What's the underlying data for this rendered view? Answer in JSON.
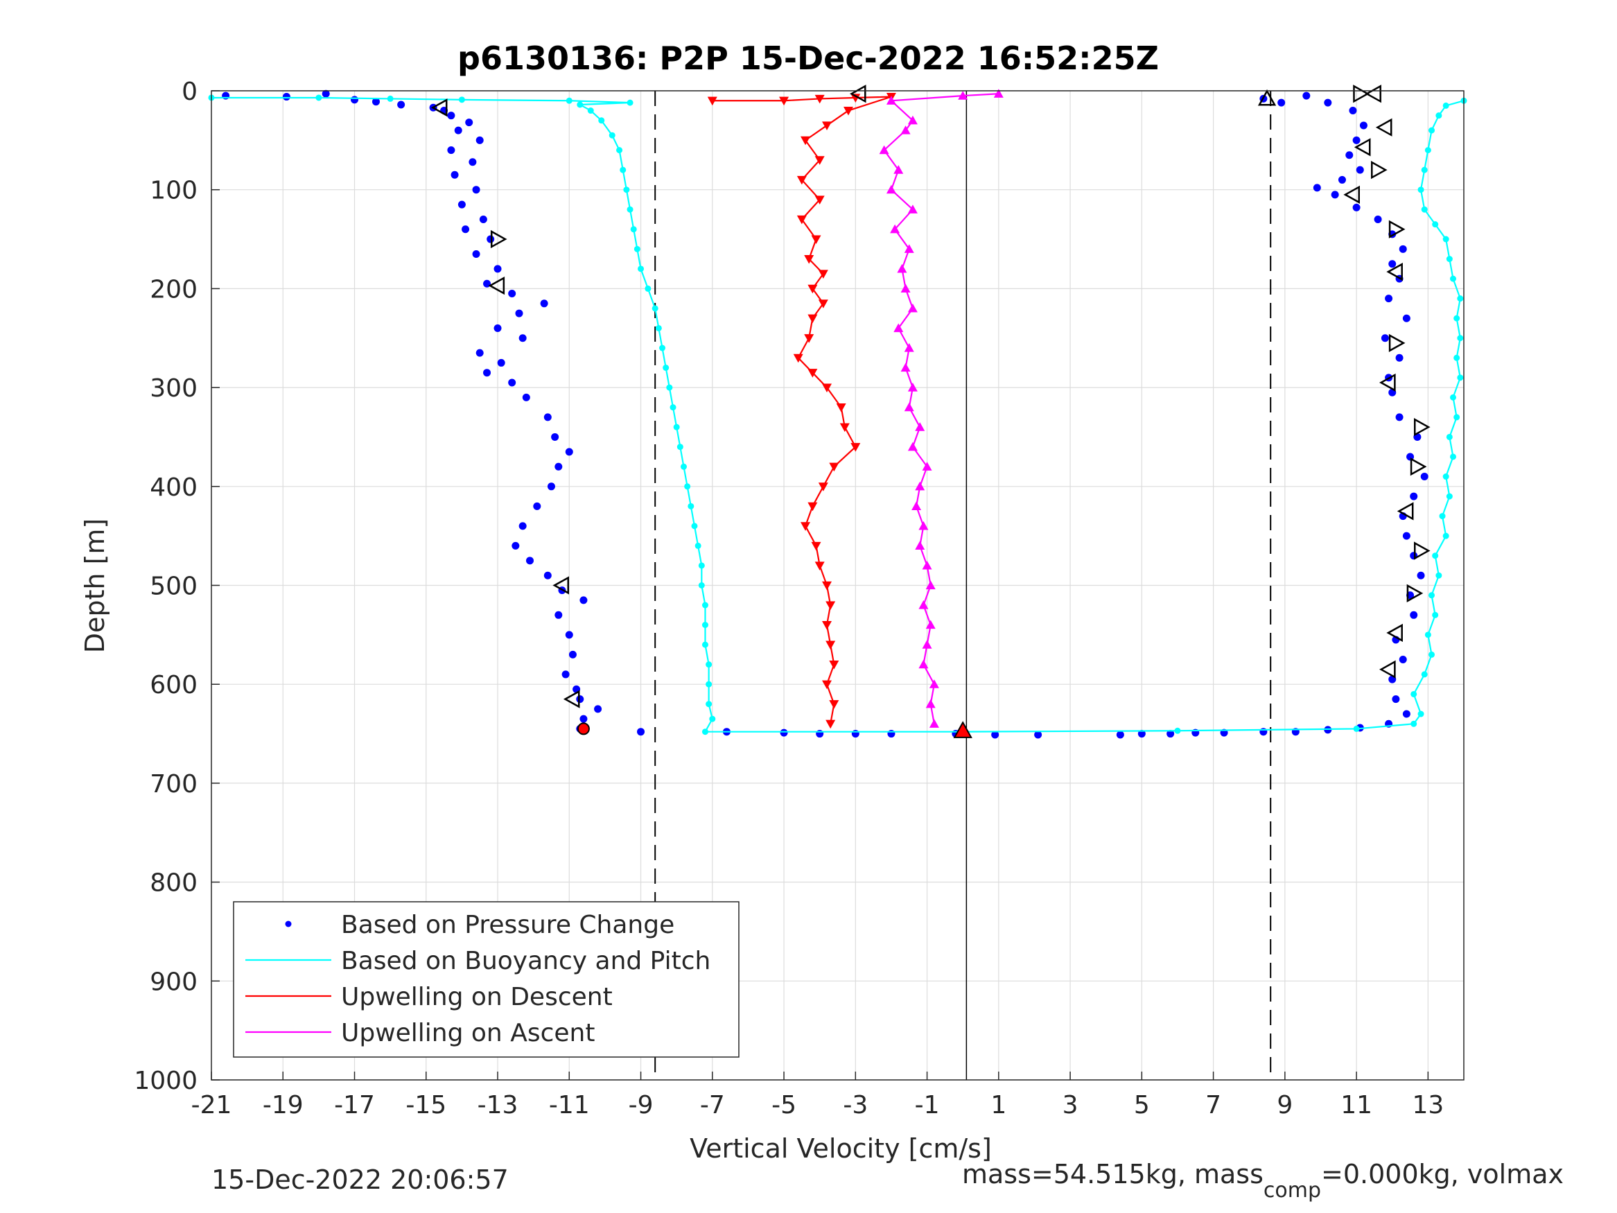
{
  "chart_data": {
    "type": "scatter",
    "title": "p6130136: P2P 15-Dec-2022 16:52:25Z",
    "xlabel": "Vertical Velocity [cm/s]",
    "ylabel": "Depth [m]",
    "xlim": [
      -21,
      14
    ],
    "ylim": [
      0,
      1000
    ],
    "y_reversed": true,
    "grid": true,
    "xticks": [
      -21,
      -19,
      -17,
      -15,
      -13,
      -11,
      -9,
      -7,
      -5,
      -3,
      -1,
      1,
      3,
      5,
      7,
      9,
      11,
      13
    ],
    "yticks": [
      0,
      100,
      200,
      300,
      400,
      500,
      600,
      700,
      800,
      900,
      1000
    ],
    "legend_position": "bottom-left",
    "reference_lines": {
      "dashed_x": [
        -8.6,
        8.6
      ],
      "solid_x": [
        0.1
      ]
    },
    "series": [
      {
        "name": "Based on Pressure Change",
        "color": "#0000ff",
        "marker": "dot",
        "points": [
          [
            -20.6,
            5
          ],
          [
            -18.9,
            6
          ],
          [
            -17.8,
            3
          ],
          [
            -17.0,
            9
          ],
          [
            -16.4,
            11
          ],
          [
            -15.7,
            14
          ],
          [
            -14.8,
            17
          ],
          [
            -14.5,
            20
          ],
          [
            -14.3,
            25
          ],
          [
            -13.8,
            32
          ],
          [
            -14.1,
            40
          ],
          [
            -13.5,
            50
          ],
          [
            -14.3,
            60
          ],
          [
            -13.7,
            72
          ],
          [
            -14.2,
            85
          ],
          [
            -13.6,
            100
          ],
          [
            -14.0,
            115
          ],
          [
            -13.4,
            130
          ],
          [
            -13.9,
            140
          ],
          [
            -13.2,
            150
          ],
          [
            -13.6,
            165
          ],
          [
            -13.0,
            180
          ],
          [
            -13.3,
            195
          ],
          [
            -12.6,
            205
          ],
          [
            -11.7,
            215
          ],
          [
            -12.4,
            225
          ],
          [
            -13.0,
            240
          ],
          [
            -12.3,
            250
          ],
          [
            -13.5,
            265
          ],
          [
            -12.9,
            275
          ],
          [
            -13.3,
            285
          ],
          [
            -12.6,
            295
          ],
          [
            -12.2,
            310
          ],
          [
            -11.6,
            330
          ],
          [
            -11.4,
            350
          ],
          [
            -11.0,
            365
          ],
          [
            -11.3,
            380
          ],
          [
            -11.5,
            400
          ],
          [
            -11.9,
            420
          ],
          [
            -12.3,
            440
          ],
          [
            -12.5,
            460
          ],
          [
            -12.1,
            475
          ],
          [
            -11.6,
            490
          ],
          [
            -11.2,
            505
          ],
          [
            -10.6,
            515
          ],
          [
            -11.3,
            530
          ],
          [
            -11.0,
            550
          ],
          [
            -10.9,
            570
          ],
          [
            -11.1,
            590
          ],
          [
            -10.8,
            605
          ],
          [
            -10.7,
            615
          ],
          [
            -10.2,
            625
          ],
          [
            -10.6,
            635
          ],
          [
            -10.7,
            645
          ],
          [
            -9.0,
            648
          ],
          [
            -6.6,
            648
          ],
          [
            -5.0,
            649
          ],
          [
            -4.0,
            650
          ],
          [
            -3.0,
            650
          ],
          [
            -2.0,
            650
          ],
          [
            -0.2,
            650
          ],
          [
            0.9,
            651
          ],
          [
            2.1,
            651
          ],
          [
            4.4,
            651
          ],
          [
            5.0,
            650
          ],
          [
            5.8,
            650
          ],
          [
            6.5,
            649
          ],
          [
            7.3,
            649
          ],
          [
            8.4,
            648
          ],
          [
            9.3,
            648
          ],
          [
            10.2,
            646
          ],
          [
            11.1,
            644
          ],
          [
            11.9,
            640
          ],
          [
            12.4,
            630
          ],
          [
            12.1,
            615
          ],
          [
            12.0,
            595
          ],
          [
            12.3,
            575
          ],
          [
            12.1,
            555
          ],
          [
            12.6,
            530
          ],
          [
            12.5,
            510
          ],
          [
            12.8,
            490
          ],
          [
            12.6,
            470
          ],
          [
            12.4,
            450
          ],
          [
            12.3,
            430
          ],
          [
            12.6,
            410
          ],
          [
            12.9,
            390
          ],
          [
            12.5,
            370
          ],
          [
            12.7,
            350
          ],
          [
            12.2,
            330
          ],
          [
            12.0,
            305
          ],
          [
            11.9,
            290
          ],
          [
            12.2,
            270
          ],
          [
            11.8,
            250
          ],
          [
            12.4,
            230
          ],
          [
            11.9,
            210
          ],
          [
            12.2,
            190
          ],
          [
            12.0,
            175
          ],
          [
            12.3,
            160
          ],
          [
            12.0,
            145
          ],
          [
            11.6,
            130
          ],
          [
            11.0,
            118
          ],
          [
            10.4,
            105
          ],
          [
            9.9,
            98
          ],
          [
            10.6,
            90
          ],
          [
            11.1,
            80
          ],
          [
            10.8,
            65
          ],
          [
            11.0,
            50
          ],
          [
            11.2,
            35
          ],
          [
            10.9,
            20
          ],
          [
            10.2,
            12
          ],
          [
            9.6,
            5
          ],
          [
            8.4,
            8
          ],
          [
            8.9,
            12
          ]
        ]
      },
      {
        "name": "Based on Buoyancy and Pitch",
        "color": "#00ffff",
        "marker": "line+dot",
        "points": [
          [
            -21.0,
            7
          ],
          [
            -18.0,
            7
          ],
          [
            -16.0,
            8
          ],
          [
            -14.0,
            9
          ],
          [
            -11.0,
            10
          ],
          [
            -9.3,
            12
          ],
          [
            -10.7,
            14
          ],
          [
            -10.4,
            20
          ],
          [
            -10.1,
            30
          ],
          [
            -9.8,
            45
          ],
          [
            -9.6,
            60
          ],
          [
            -9.5,
            80
          ],
          [
            -9.4,
            100
          ],
          [
            -9.3,
            120
          ],
          [
            -9.2,
            140
          ],
          [
            -9.1,
            160
          ],
          [
            -9.0,
            180
          ],
          [
            -8.8,
            200
          ],
          [
            -8.6,
            220
          ],
          [
            -8.5,
            240
          ],
          [
            -8.4,
            260
          ],
          [
            -8.3,
            280
          ],
          [
            -8.2,
            300
          ],
          [
            -8.1,
            320
          ],
          [
            -8.0,
            340
          ],
          [
            -7.9,
            360
          ],
          [
            -7.8,
            380
          ],
          [
            -7.7,
            400
          ],
          [
            -7.6,
            420
          ],
          [
            -7.5,
            440
          ],
          [
            -7.4,
            460
          ],
          [
            -7.3,
            480
          ],
          [
            -7.3,
            500
          ],
          [
            -7.2,
            520
          ],
          [
            -7.2,
            540
          ],
          [
            -7.2,
            560
          ],
          [
            -7.1,
            580
          ],
          [
            -7.1,
            600
          ],
          [
            -7.1,
            620
          ],
          [
            -7.0,
            635
          ],
          [
            -7.2,
            648
          ],
          [
            0.0,
            648
          ],
          [
            6.0,
            647
          ],
          [
            11.0,
            645
          ],
          [
            12.6,
            640
          ],
          [
            12.8,
            630
          ],
          [
            12.6,
            610
          ],
          [
            12.9,
            590
          ],
          [
            13.1,
            570
          ],
          [
            13.0,
            550
          ],
          [
            13.2,
            530
          ],
          [
            13.1,
            510
          ],
          [
            13.3,
            490
          ],
          [
            13.2,
            470
          ],
          [
            13.5,
            450
          ],
          [
            13.4,
            430
          ],
          [
            13.6,
            410
          ],
          [
            13.5,
            390
          ],
          [
            13.7,
            370
          ],
          [
            13.6,
            350
          ],
          [
            13.8,
            330
          ],
          [
            13.7,
            310
          ],
          [
            13.9,
            290
          ],
          [
            13.8,
            270
          ],
          [
            13.9,
            250
          ],
          [
            13.8,
            230
          ],
          [
            13.9,
            210
          ],
          [
            13.7,
            190
          ],
          [
            13.6,
            170
          ],
          [
            13.5,
            150
          ],
          [
            13.2,
            135
          ],
          [
            12.9,
            120
          ],
          [
            12.8,
            100
          ],
          [
            12.9,
            80
          ],
          [
            13.0,
            60
          ],
          [
            13.1,
            40
          ],
          [
            13.3,
            25
          ],
          [
            13.5,
            15
          ],
          [
            14.0,
            10
          ]
        ]
      },
      {
        "name": "Upwelling on Descent",
        "color": "#ff0000",
        "marker": "down-triangle",
        "points": [
          [
            -7.0,
            10
          ],
          [
            -5.0,
            10
          ],
          [
            -4.0,
            8
          ],
          [
            -3.0,
            7
          ],
          [
            -2.0,
            6
          ],
          [
            -3.2,
            20
          ],
          [
            -3.8,
            35
          ],
          [
            -4.4,
            50
          ],
          [
            -4.0,
            70
          ],
          [
            -4.5,
            90
          ],
          [
            -4.0,
            110
          ],
          [
            -4.5,
            130
          ],
          [
            -4.1,
            150
          ],
          [
            -4.3,
            170
          ],
          [
            -3.9,
            185
          ],
          [
            -4.2,
            200
          ],
          [
            -3.9,
            215
          ],
          [
            -4.2,
            230
          ],
          [
            -4.3,
            250
          ],
          [
            -4.6,
            270
          ],
          [
            -4.2,
            285
          ],
          [
            -3.8,
            300
          ],
          [
            -3.4,
            320
          ],
          [
            -3.3,
            340
          ],
          [
            -3.0,
            360
          ],
          [
            -3.6,
            380
          ],
          [
            -3.9,
            400
          ],
          [
            -4.2,
            420
          ],
          [
            -4.4,
            440
          ],
          [
            -4.1,
            460
          ],
          [
            -4.0,
            480
          ],
          [
            -3.8,
            500
          ],
          [
            -3.7,
            520
          ],
          [
            -3.8,
            540
          ],
          [
            -3.7,
            560
          ],
          [
            -3.6,
            580
          ],
          [
            -3.8,
            600
          ],
          [
            -3.6,
            620
          ],
          [
            -3.7,
            640
          ]
        ]
      },
      {
        "name": "Upwelling on Ascent",
        "color": "#ff00ff",
        "marker": "up-triangle",
        "points": [
          [
            -0.8,
            640
          ],
          [
            -0.9,
            620
          ],
          [
            -0.8,
            600
          ],
          [
            -1.1,
            580
          ],
          [
            -1.0,
            560
          ],
          [
            -0.9,
            540
          ],
          [
            -1.1,
            520
          ],
          [
            -0.9,
            500
          ],
          [
            -1.0,
            480
          ],
          [
            -1.2,
            460
          ],
          [
            -1.1,
            440
          ],
          [
            -1.3,
            420
          ],
          [
            -1.2,
            400
          ],
          [
            -1.0,
            380
          ],
          [
            -1.4,
            360
          ],
          [
            -1.2,
            340
          ],
          [
            -1.5,
            320
          ],
          [
            -1.4,
            300
          ],
          [
            -1.6,
            280
          ],
          [
            -1.5,
            260
          ],
          [
            -1.8,
            240
          ],
          [
            -1.4,
            220
          ],
          [
            -1.6,
            200
          ],
          [
            -1.7,
            180
          ],
          [
            -1.5,
            160
          ],
          [
            -1.9,
            140
          ],
          [
            -1.4,
            120
          ],
          [
            -2.0,
            100
          ],
          [
            -1.8,
            80
          ],
          [
            -2.2,
            60
          ],
          [
            -1.6,
            40
          ],
          [
            -1.4,
            30
          ],
          [
            -2.0,
            10
          ],
          [
            0.0,
            5
          ],
          [
            1.0,
            3
          ]
        ]
      }
    ],
    "turn_markers": [
      {
        "dir": "left",
        "points": [
          [
            -14.6,
            17
          ],
          [
            -13.0,
            197
          ],
          [
            -11.2,
            500
          ],
          [
            -10.9,
            615
          ],
          [
            -2.9,
            3
          ],
          [
            11.5,
            3
          ],
          [
            11.8,
            37
          ],
          [
            11.2,
            57
          ],
          [
            10.9,
            105
          ],
          [
            11.9,
            585
          ],
          [
            12.1,
            548
          ],
          [
            12.1,
            183
          ],
          [
            11.9,
            295
          ],
          [
            12.4,
            425
          ]
        ]
      },
      {
        "dir": "right",
        "points": [
          [
            -13.0,
            150
          ],
          [
            11.1,
            3
          ],
          [
            11.6,
            80
          ],
          [
            12.1,
            140
          ],
          [
            12.1,
            255
          ],
          [
            12.8,
            340
          ],
          [
            12.7,
            380
          ],
          [
            12.8,
            465
          ],
          [
            12.6,
            508
          ]
        ]
      },
      {
        "dir": "up",
        "points": [
          [
            8.5,
            8
          ]
        ]
      }
    ],
    "special_markers": [
      {
        "type": "filled-up-triangle",
        "color": "#ff0000",
        "x": 0.0,
        "y": 647
      },
      {
        "type": "filled-circle",
        "color": "#ff0000",
        "x": -10.6,
        "y": 645
      }
    ],
    "legend": [
      "Based on Pressure Change",
      "Based on Buoyancy and Pitch",
      "Upwelling on Descent",
      "Upwelling on Ascent"
    ]
  },
  "footer": {
    "timestamp": "15-Dec-2022 20:06:57",
    "mass_prefix": "mass=54.515kg, mass",
    "mass_subscript": "comp",
    "mass_suffix": "=0.000kg, volmax"
  }
}
